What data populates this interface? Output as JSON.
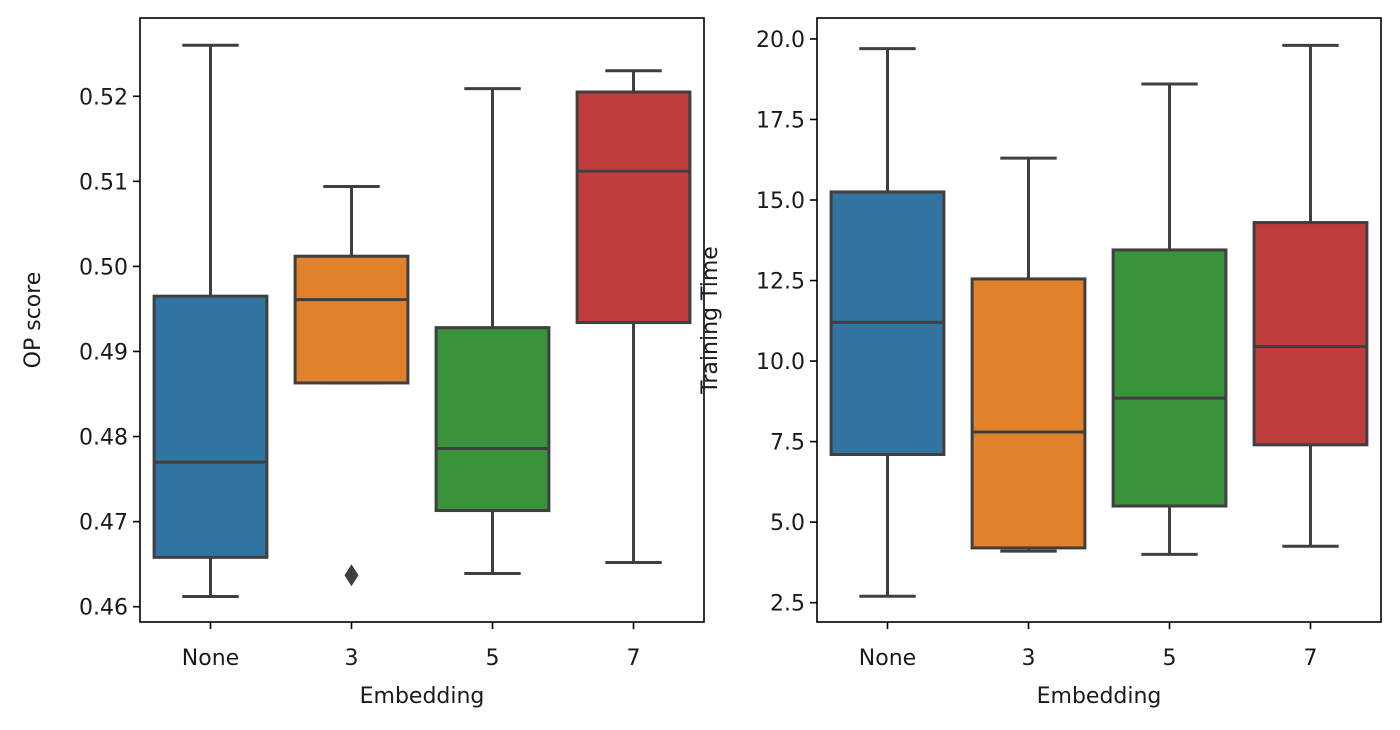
{
  "chart_data": [
    {
      "type": "box",
      "xlabel": "Embedding",
      "ylabel": "OP score",
      "categories": [
        "None",
        "3",
        "5",
        "7"
      ],
      "colors": [
        "#3274a1",
        "#e1812c",
        "#3a923a",
        "#c03d3e"
      ],
      "ylim": [
        0.4582,
        0.5292
      ],
      "yticks": [
        0.46,
        0.47,
        0.48,
        0.49,
        0.5,
        0.51,
        0.52
      ],
      "ytick_labels": [
        "0.46",
        "0.47",
        "0.48",
        "0.49",
        "0.50",
        "0.51",
        "0.52"
      ],
      "grid": false,
      "boxes": [
        {
          "category": "None",
          "whisker_low": 0.4612,
          "q1": 0.4658,
          "median": 0.477,
          "q3": 0.4965,
          "whisker_high": 0.526,
          "outliers": []
        },
        {
          "category": "3",
          "whisker_low": 0.4863,
          "q1": 0.4863,
          "median": 0.4961,
          "q3": 0.5012,
          "whisker_high": 0.5094,
          "outliers": [
            0.4637
          ]
        },
        {
          "category": "5",
          "whisker_low": 0.4639,
          "q1": 0.4713,
          "median": 0.4786,
          "q3": 0.4928,
          "whisker_high": 0.5209,
          "outliers": []
        },
        {
          "category": "7",
          "whisker_low": 0.4652,
          "q1": 0.4934,
          "median": 0.5112,
          "q3": 0.5205,
          "whisker_high": 0.523,
          "outliers": []
        }
      ]
    },
    {
      "type": "box",
      "xlabel": "Embedding",
      "ylabel": "Training Time",
      "categories": [
        "None",
        "3",
        "5",
        "7"
      ],
      "colors": [
        "#3274a1",
        "#e1812c",
        "#3a923a",
        "#c03d3e"
      ],
      "ylim": [
        1.9,
        20.65
      ],
      "yticks": [
        2.5,
        5.0,
        7.5,
        10.0,
        12.5,
        15.0,
        17.5,
        20.0
      ],
      "ytick_labels": [
        "2.5",
        "5.0",
        "7.5",
        "10.0",
        "12.5",
        "15.0",
        "17.5",
        "20.0"
      ],
      "grid": false,
      "boxes": [
        {
          "category": "None",
          "whisker_low": 2.7,
          "q1": 7.1,
          "median": 11.2,
          "q3": 15.25,
          "whisker_high": 19.7,
          "outliers": []
        },
        {
          "category": "3",
          "whisker_low": 4.1,
          "q1": 4.2,
          "median": 7.8,
          "q3": 12.55,
          "whisker_high": 16.3,
          "outliers": []
        },
        {
          "category": "5",
          "whisker_low": 4.0,
          "q1": 5.5,
          "median": 8.85,
          "q3": 13.45,
          "whisker_high": 18.6,
          "outliers": []
        },
        {
          "category": "7",
          "whisker_low": 4.25,
          "q1": 7.4,
          "median": 10.45,
          "q3": 14.3,
          "whisker_high": 19.8,
          "outliers": []
        }
      ]
    }
  ]
}
